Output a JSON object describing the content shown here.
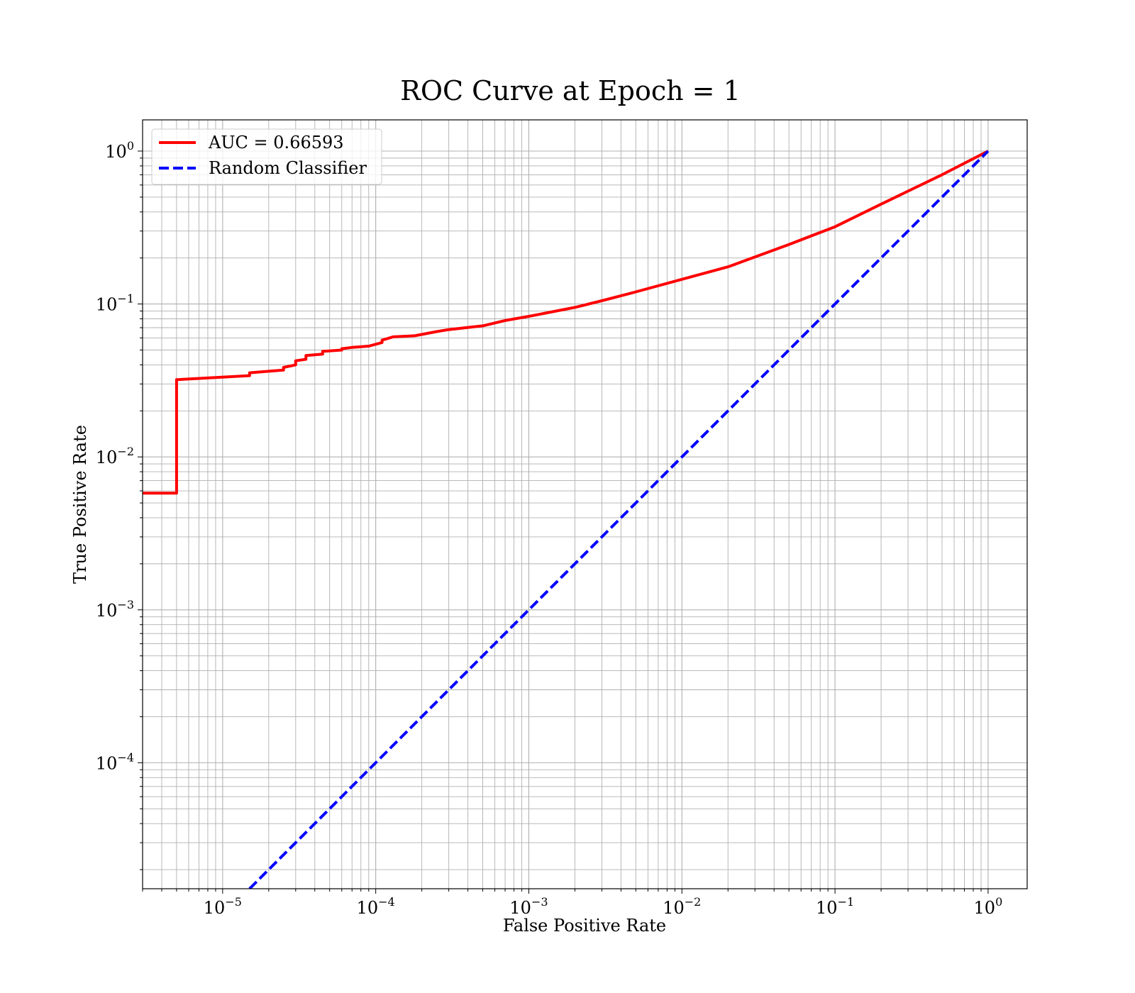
{
  "chart_data": {
    "type": "line",
    "title": "ROC Curve at Epoch = 1",
    "xlabel": "False Positive Rate",
    "ylabel": "True Positive Rate",
    "xscale": "log",
    "yscale": "log",
    "xlim": [
      3e-06,
      1.8
    ],
    "ylim": [
      1.5e-05,
      1.6
    ],
    "grid": true,
    "grid_minor": true,
    "legend_position": "upper-left",
    "x_ticks": [
      {
        "base": "10",
        "exp": "−5",
        "value": 1e-05
      },
      {
        "base": "10",
        "exp": "−4",
        "value": 0.0001
      },
      {
        "base": "10",
        "exp": "−3",
        "value": 0.001
      },
      {
        "base": "10",
        "exp": "−2",
        "value": 0.01
      },
      {
        "base": "10",
        "exp": "−1",
        "value": 0.1
      },
      {
        "base": "10",
        "exp": "0",
        "value": 1
      }
    ],
    "y_ticks": [
      {
        "base": "10",
        "exp": "−4",
        "value": 0.0001
      },
      {
        "base": "10",
        "exp": "−3",
        "value": 0.001
      },
      {
        "base": "10",
        "exp": "−2",
        "value": 0.01
      },
      {
        "base": "10",
        "exp": "−1",
        "value": 0.1
      },
      {
        "base": "10",
        "exp": "0",
        "value": 1
      }
    ],
    "series": [
      {
        "name": "AUC = 0.66593",
        "color": "#ff0000",
        "style": "solid",
        "points": [
          [
            3e-06,
            0.0058
          ],
          [
            5e-06,
            0.0058
          ],
          [
            5e-06,
            0.032
          ],
          [
            1.5e-05,
            0.034
          ],
          [
            1.5e-05,
            0.0355
          ],
          [
            2.5e-05,
            0.037
          ],
          [
            2.5e-05,
            0.0385
          ],
          [
            3e-05,
            0.04
          ],
          [
            3e-05,
            0.0425
          ],
          [
            3.5e-05,
            0.0435
          ],
          [
            3.5e-05,
            0.046
          ],
          [
            4.5e-05,
            0.047
          ],
          [
            4.5e-05,
            0.049
          ],
          [
            6e-05,
            0.05
          ],
          [
            6e-05,
            0.051
          ],
          [
            7e-05,
            0.052
          ],
          [
            9e-05,
            0.053
          ],
          [
            0.00011,
            0.056
          ],
          [
            0.00011,
            0.058
          ],
          [
            0.00013,
            0.061
          ],
          [
            0.00018,
            0.062
          ],
          [
            0.00025,
            0.066
          ],
          [
            0.0003,
            0.068
          ],
          [
            0.0005,
            0.072
          ],
          [
            0.0007,
            0.078
          ],
          [
            0.001,
            0.083
          ],
          [
            0.002,
            0.095
          ],
          [
            0.003,
            0.105
          ],
          [
            0.005,
            0.12
          ],
          [
            0.01,
            0.145
          ],
          [
            0.02,
            0.175
          ],
          [
            0.05,
            0.245
          ],
          [
            0.1,
            0.32
          ],
          [
            0.2,
            0.45
          ],
          [
            0.5,
            0.7
          ],
          [
            1.0,
            1.0
          ]
        ]
      },
      {
        "name": "Random Classifier",
        "color": "#0000ff",
        "style": "dashed",
        "points": [
          [
            1.5e-05,
            1.5e-05
          ],
          [
            1.0,
            1.0
          ]
        ]
      }
    ]
  }
}
